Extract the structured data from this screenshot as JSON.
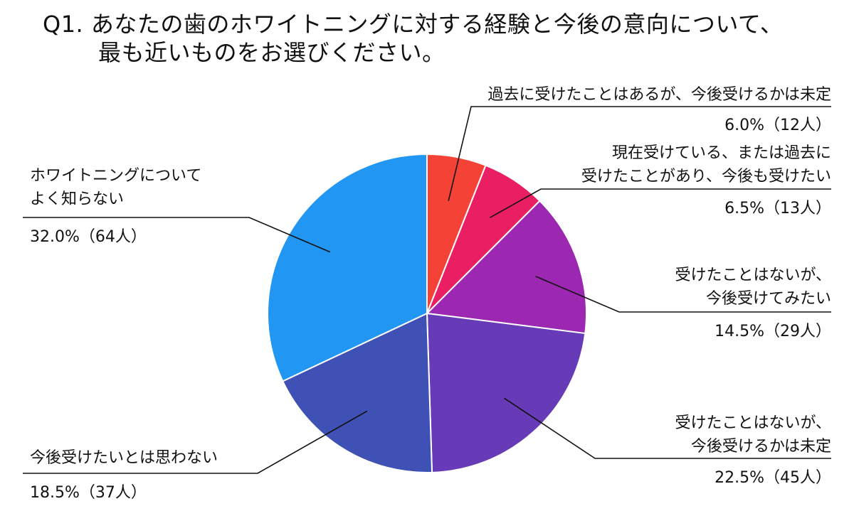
{
  "title_line1": "Q1. あなたの歯のホワイトニングに対する経験と今後の意向について、",
  "title_line2": "最も近いものをお選びください。",
  "chart_data": {
    "type": "pie",
    "title": "Q1. あなたの歯のホワイトニングに対する経験と今後の意向について、最も近いものをお選びください。",
    "start_angle": "top",
    "direction": "clockwise",
    "slices": [
      {
        "label_lines": [
          "過去に受けたことはあるが、今後受けるかは未定"
        ],
        "value_label": "6.0%（12人）",
        "percent": 6.0,
        "count": 12,
        "color": "#f44336"
      },
      {
        "label_lines": [
          "現在受けている、または過去に",
          "受けたことがあり、今後も受けたい"
        ],
        "value_label": "6.5%（13人）",
        "percent": 6.5,
        "count": 13,
        "color": "#e91e63"
      },
      {
        "label_lines": [
          "受けたことはないが、",
          "今後受けてみたい"
        ],
        "value_label": "14.5%（29人）",
        "percent": 14.5,
        "count": 29,
        "color": "#9c27b0"
      },
      {
        "label_lines": [
          "受けたことはないが、",
          "今後受けるかは未定"
        ],
        "value_label": "22.5%（45人）",
        "percent": 22.5,
        "count": 45,
        "color": "#673ab7"
      },
      {
        "label_lines": [
          "今後受けたいとは思わない"
        ],
        "value_label": "18.5%（37人）",
        "percent": 18.5,
        "count": 37,
        "color": "#3f51b5"
      },
      {
        "label_lines": [
          "ホワイトニングについて",
          "よく知らない"
        ],
        "value_label": "32.0%（64人）",
        "percent": 32.0,
        "count": 64,
        "color": "#2196f3"
      }
    ]
  }
}
